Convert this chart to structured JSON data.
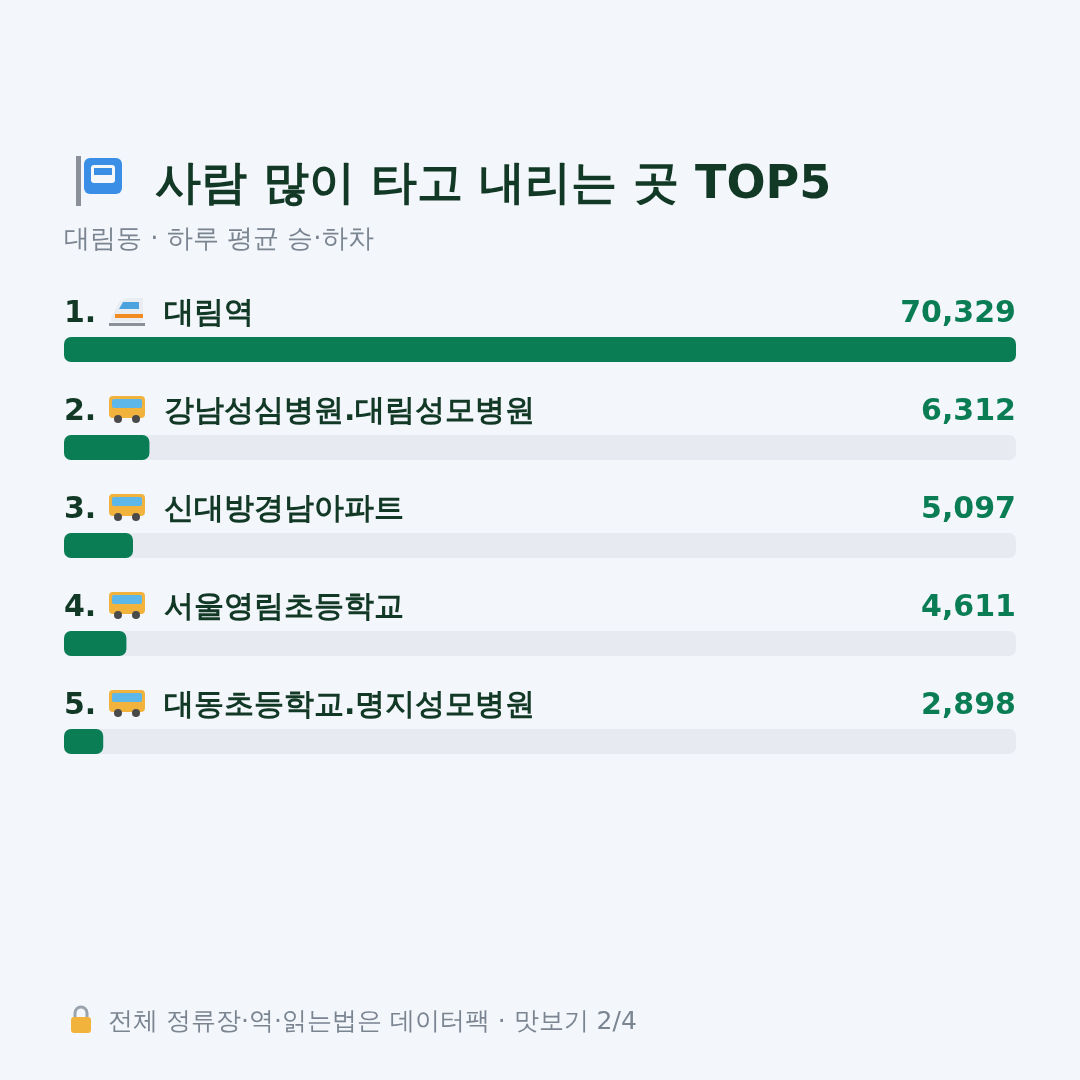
{
  "chart_data": {
    "type": "bar",
    "orientation": "horizontal",
    "title": "사람 많이 타고 내리는 곳 TOP5",
    "subtitle": "대림동 · 하루 평균 승·하차",
    "categories": [
      "1. 대림역",
      "2. 강남성심병원.대림성모병원",
      "3. 신대방경남아파트",
      "4. 서울영림초등학교",
      "5. 대동초등학교.명지성모병원"
    ],
    "values": [
      70329,
      6312,
      5097,
      4611,
      2898
    ],
    "color": "#0b7d55",
    "value_labels": [
      "70,329",
      "6,312",
      "5,097",
      "4,611",
      "2,898"
    ],
    "annotations": [
      "전체 정류장·역·읽는법은 데이터팩 · 맛보기 2/4"
    ]
  }
}
